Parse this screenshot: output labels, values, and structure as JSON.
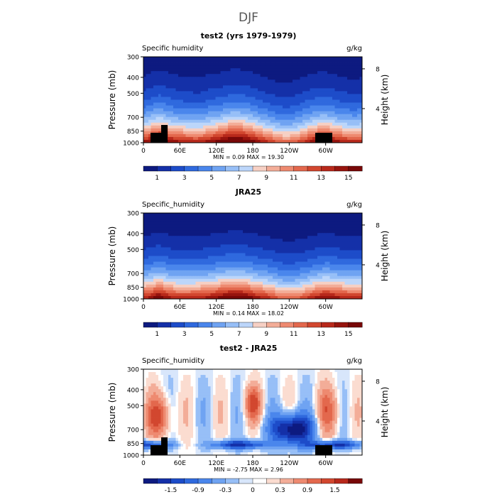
{
  "page_title": "DJF",
  "chart_data": [
    {
      "type": "heatmap",
      "title": "test2 (yrs 1979-1979)",
      "left_label": "Specific humidity",
      "units": "g/kg",
      "ylabel": "Pressure (mb)",
      "ylabel_right": "Height (km)",
      "y_ticks": [
        "300",
        "400",
        "500",
        "700",
        "850",
        "1000"
      ],
      "y_ticks_right": [
        "8",
        "4"
      ],
      "x_ticks": [
        "0",
        "60E",
        "120E",
        "180",
        "120W",
        "60W"
      ],
      "stats": "MIN =    0.09   MAX =   19.30",
      "colorbar_labels": [
        "1",
        "3",
        "5",
        "7",
        "9",
        "11",
        "13",
        "15"
      ],
      "colorbar_levels": [
        0,
        1,
        2,
        3,
        4,
        5,
        6,
        7,
        8,
        9,
        10,
        11,
        12,
        13,
        14,
        15,
        16
      ],
      "field": "model"
    },
    {
      "type": "heatmap",
      "title": "JRA25",
      "left_label": "Specific_humidity",
      "units": "g/kg",
      "ylabel": "Pressure (mb)",
      "ylabel_right": "Height (km)",
      "y_ticks": [
        "300",
        "400",
        "500",
        "700",
        "850",
        "1000"
      ],
      "y_ticks_right": [
        "8",
        "4"
      ],
      "x_ticks": [
        "0",
        "60E",
        "120E",
        "180",
        "120W",
        "60W"
      ],
      "stats": "MIN =    0.14   MAX =   18.02",
      "colorbar_labels": [
        "1",
        "3",
        "5",
        "7",
        "9",
        "11",
        "13",
        "15"
      ],
      "colorbar_levels": [
        0,
        1,
        2,
        3,
        4,
        5,
        6,
        7,
        8,
        9,
        10,
        11,
        12,
        13,
        14,
        15,
        16
      ],
      "field": "reanalysis"
    },
    {
      "type": "heatmap",
      "title": "test2 - JRA25",
      "left_label": "Specific_humidity",
      "units": "g/kg",
      "ylabel": "Pressure (mb)",
      "ylabel_right": "Height (km)",
      "y_ticks": [
        "300",
        "400",
        "500",
        "700",
        "850",
        "1000"
      ],
      "y_ticks_right": [
        "8",
        "4"
      ],
      "x_ticks": [
        "0",
        "60E",
        "120E",
        "180",
        "120W",
        "60W"
      ],
      "stats": "MIN =   -2.75   MAX =    2.96",
      "colorbar_labels": [
        "-1.5",
        "-0.9",
        "-0.3",
        "0",
        "0.3",
        "0.9",
        "1.5"
      ],
      "colorbar_levels": [
        -2.1,
        -1.8,
        -1.5,
        -1.2,
        -0.9,
        -0.6,
        -0.3,
        -0.1,
        0,
        0.1,
        0.3,
        0.6,
        0.9,
        1.2,
        1.5,
        1.8,
        2.1
      ],
      "field": "difference"
    }
  ],
  "colors": {
    "humidity_scale": [
      "#0d1a80",
      "#1430a8",
      "#1d4cc9",
      "#2f69de",
      "#4a86ec",
      "#6fa3f2",
      "#97bff7",
      "#bcd6fa",
      "#f6d0c4",
      "#f3ad98",
      "#ee8a70",
      "#e3684d",
      "#d2472f",
      "#b8291b",
      "#97140e",
      "#780808"
    ],
    "difference_scale": [
      "#0d1a80",
      "#1430a8",
      "#1d4cc9",
      "#2f69de",
      "#4a86ec",
      "#6fa3f2",
      "#97bff7",
      "#d8e6fb",
      "#ffffff",
      "#fbdcd0",
      "#f3ad98",
      "#ee8a70",
      "#e3684d",
      "#d2472f",
      "#b8291b",
      "#780808"
    ],
    "topography": "#000000"
  }
}
